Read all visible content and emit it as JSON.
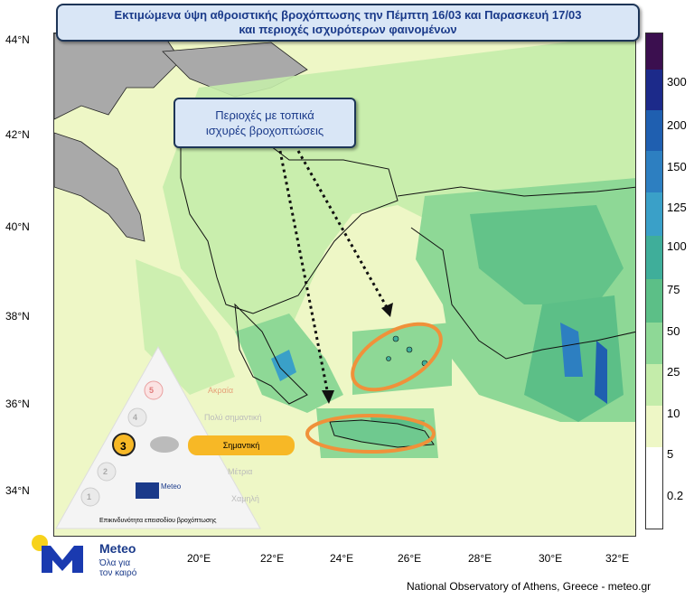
{
  "title": {
    "line1": "Εκτιμώμενα ύψη αθροιστικής βροχόπτωσης την Πέμπτη 16/03 και Παρασκευή 17/03",
    "line2": "και περιοχές ισχυρότερων φαινομένων"
  },
  "callout": {
    "line1": "Περιοχές με τοπικά",
    "line2": "ισχυρές βροχοπτώσεις"
  },
  "lat_labels": [
    "44°N",
    "42°N",
    "40°N",
    "38°N",
    "36°N",
    "34°N"
  ],
  "lon_labels": [
    "20°E",
    "22°E",
    "24°E",
    "26°E",
    "28°E",
    "30°E",
    "32°E"
  ],
  "colorbar": {
    "labels": [
      "300",
      "200",
      "150",
      "125",
      "100",
      "75",
      "50",
      "25",
      "10",
      "5",
      "0.2"
    ],
    "colors": [
      "#3b0f4f",
      "#1c2a8a",
      "#1f5fb0",
      "#2d7fc1",
      "#3aa0c8",
      "#3fae9a",
      "#5cbf87",
      "#8ed896",
      "#c4ecaa",
      "#eef7c6",
      "#ffffff"
    ]
  },
  "risk_scale": {
    "levels": [
      "Ακραία",
      "Πολύ σημαντική",
      "Σημαντική",
      "Μέτρια",
      "Χαμηλή"
    ],
    "numbers": [
      "5",
      "4",
      "3",
      "2",
      "1"
    ],
    "selected_level": "Σημαντική",
    "selected_number": "3",
    "caption": "Επικινδυνότητα επεισοδίου βροχόπτωσης",
    "brand": "Meteo"
  },
  "logo": {
    "name": "Meteo",
    "tagline_1": "Όλα για",
    "tagline_2": "τον καιρό"
  },
  "credit": "National Observatory of Athens, Greece - meteo.gr"
}
